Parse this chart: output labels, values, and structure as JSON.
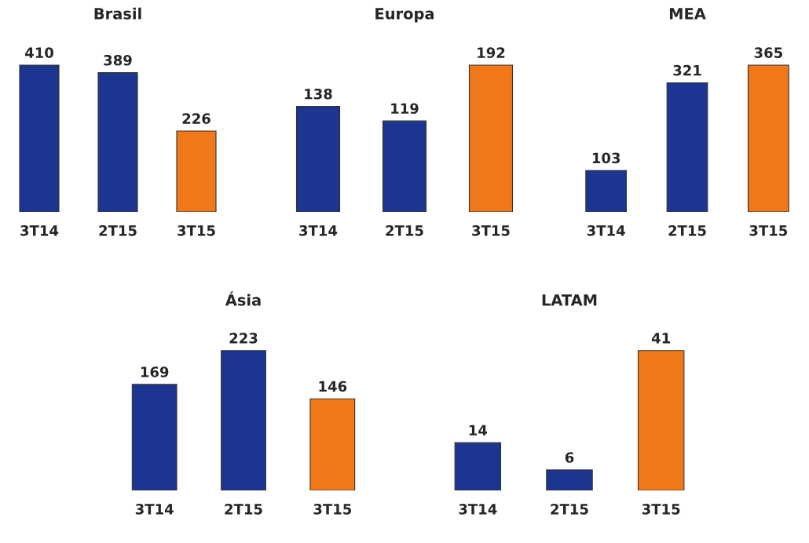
{
  "chart_data": [
    {
      "type": "bar",
      "title": "Brasil",
      "categories": [
        "3T14",
        "2T15",
        "3T15"
      ],
      "values": [
        410,
        389,
        226
      ],
      "colors": [
        "#1b3590",
        "#1b3590",
        "#f07818"
      ],
      "data_labels": true,
      "tick_labels": "x"
    },
    {
      "type": "bar",
      "title": "Europa",
      "categories": [
        "3T14",
        "2T15",
        "3T15"
      ],
      "values": [
        138,
        119,
        192
      ],
      "colors": [
        "#1b3590",
        "#1b3590",
        "#f07818"
      ],
      "data_labels": true,
      "tick_labels": "x"
    },
    {
      "type": "bar",
      "title": "MEA",
      "categories": [
        "3T14",
        "2T15",
        "3T15"
      ],
      "values": [
        103,
        321,
        365
      ],
      "colors": [
        "#1b3590",
        "#1b3590",
        "#f07818"
      ],
      "data_labels": true,
      "tick_labels": "x"
    },
    {
      "type": "bar",
      "title": "Ásia",
      "categories": [
        "3T14",
        "2T15",
        "3T15"
      ],
      "values": [
        169,
        223,
        146
      ],
      "colors": [
        "#1b3590",
        "#1b3590",
        "#f07818"
      ],
      "data_labels": true,
      "tick_labels": "x"
    },
    {
      "type": "bar",
      "title": "LATAM",
      "categories": [
        "3T14",
        "2T15",
        "3T15"
      ],
      "values": [
        14,
        6,
        41
      ],
      "colors": [
        "#1b3590",
        "#1b3590",
        "#f07818"
      ],
      "data_labels": true,
      "tick_labels": "x"
    }
  ]
}
